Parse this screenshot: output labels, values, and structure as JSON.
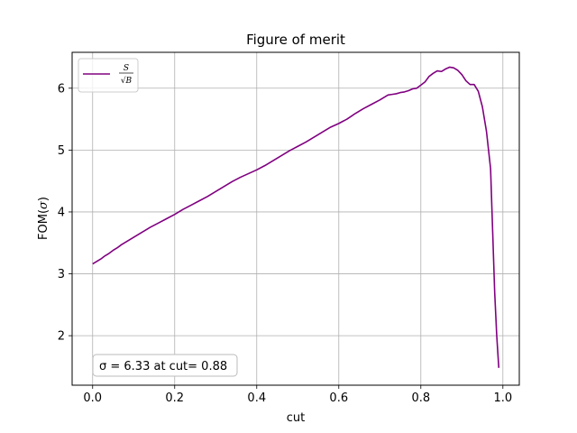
{
  "chart_data": {
    "type": "line",
    "title": "Figure of merit",
    "xlabel": "cut",
    "ylabel": "FOM(σ)",
    "xlim": [
      -0.05,
      1.04
    ],
    "ylim": [
      1.2,
      6.58
    ],
    "x_ticks": [
      0.0,
      0.2,
      0.4,
      0.6,
      0.8,
      1.0
    ],
    "x_tick_labels": [
      "0.0",
      "0.2",
      "0.4",
      "0.6",
      "0.8",
      "1.0"
    ],
    "y_ticks": [
      2,
      3,
      4,
      5,
      6
    ],
    "y_tick_labels": [
      "2",
      "3",
      "4",
      "5",
      "6"
    ],
    "grid": true,
    "legend": {
      "placement": "top-left",
      "label_numerator": "S",
      "label_denominator": "√B"
    },
    "annotation": {
      "text": "σ = 6.33 at cut= 0.88",
      "placement": "bottom-left"
    },
    "series": [
      {
        "name": "S/√B",
        "color": "#800080",
        "x": [
          0.0,
          0.01,
          0.02,
          0.03,
          0.04,
          0.05,
          0.06,
          0.07,
          0.08,
          0.09,
          0.1,
          0.12,
          0.14,
          0.16,
          0.18,
          0.2,
          0.22,
          0.24,
          0.26,
          0.28,
          0.3,
          0.32,
          0.34,
          0.36,
          0.38,
          0.4,
          0.42,
          0.44,
          0.46,
          0.48,
          0.5,
          0.52,
          0.54,
          0.56,
          0.58,
          0.6,
          0.62,
          0.64,
          0.66,
          0.68,
          0.7,
          0.71,
          0.72,
          0.73,
          0.74,
          0.75,
          0.76,
          0.77,
          0.78,
          0.79,
          0.8,
          0.81,
          0.82,
          0.83,
          0.84,
          0.85,
          0.86,
          0.87,
          0.88,
          0.89,
          0.9,
          0.91,
          0.92,
          0.93,
          0.94,
          0.95,
          0.96,
          0.97,
          0.975,
          0.98,
          0.985,
          0.99
        ],
        "y": [
          3.16,
          3.2,
          3.24,
          3.29,
          3.33,
          3.38,
          3.42,
          3.47,
          3.51,
          3.55,
          3.59,
          3.67,
          3.75,
          3.82,
          3.89,
          3.96,
          4.04,
          4.11,
          4.18,
          4.25,
          4.33,
          4.41,
          4.49,
          4.56,
          4.62,
          4.68,
          4.75,
          4.83,
          4.91,
          4.99,
          5.06,
          5.13,
          5.21,
          5.29,
          5.37,
          5.43,
          5.5,
          5.59,
          5.67,
          5.74,
          5.81,
          5.85,
          5.89,
          5.9,
          5.91,
          5.93,
          5.94,
          5.96,
          5.99,
          6.0,
          6.05,
          6.1,
          6.19,
          6.24,
          6.28,
          6.27,
          6.31,
          6.34,
          6.33,
          6.29,
          6.22,
          6.12,
          6.06,
          6.06,
          5.95,
          5.7,
          5.3,
          4.7,
          3.7,
          2.7,
          2.0,
          1.48
        ]
      }
    ]
  }
}
